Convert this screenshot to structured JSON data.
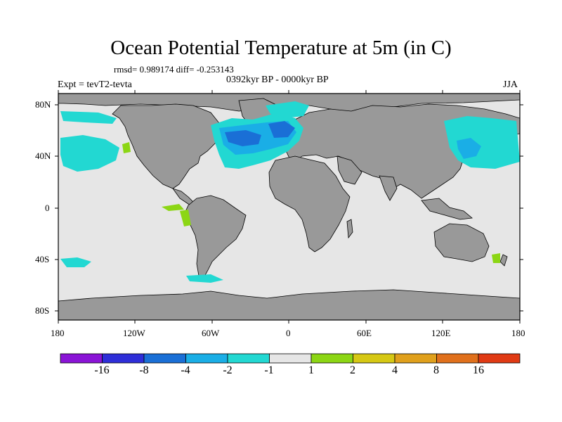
{
  "title": "Ocean Potential Temperature at 5m (in C)",
  "stats": "rmsd= 0.989174 diff= -0.253143",
  "experiment": "Expt = tevT2-tevta",
  "period": "0392kyr BP - 0000kyr BP",
  "season": "JJA",
  "axes": {
    "x_ticks": [
      "180",
      "120W",
      "60W",
      "0",
      "60E",
      "120E",
      "180"
    ],
    "y_ticks": [
      "80N",
      "40N",
      "0",
      "40S",
      "80S"
    ]
  },
  "colorbar": {
    "labels": [
      "-16",
      "-8",
      "-4",
      "-2",
      "-1",
      "1",
      "2",
      "4",
      "8",
      "16"
    ],
    "colors": [
      "#8a14d6",
      "#2e2ed8",
      "#1a6fd6",
      "#1aaee6",
      "#22d8d2",
      "#e6e6e6",
      "#8cd614",
      "#d6c814",
      "#e0a01c",
      "#e0701c",
      "#e03a14"
    ]
  },
  "map_colors": {
    "land": "#999999",
    "neutral_ocean": "#e6e6e6",
    "cool": "#22d8d2",
    "cooler": "#1aaee6",
    "coldest": "#1a6fd6",
    "warm": "#8cd614"
  }
}
